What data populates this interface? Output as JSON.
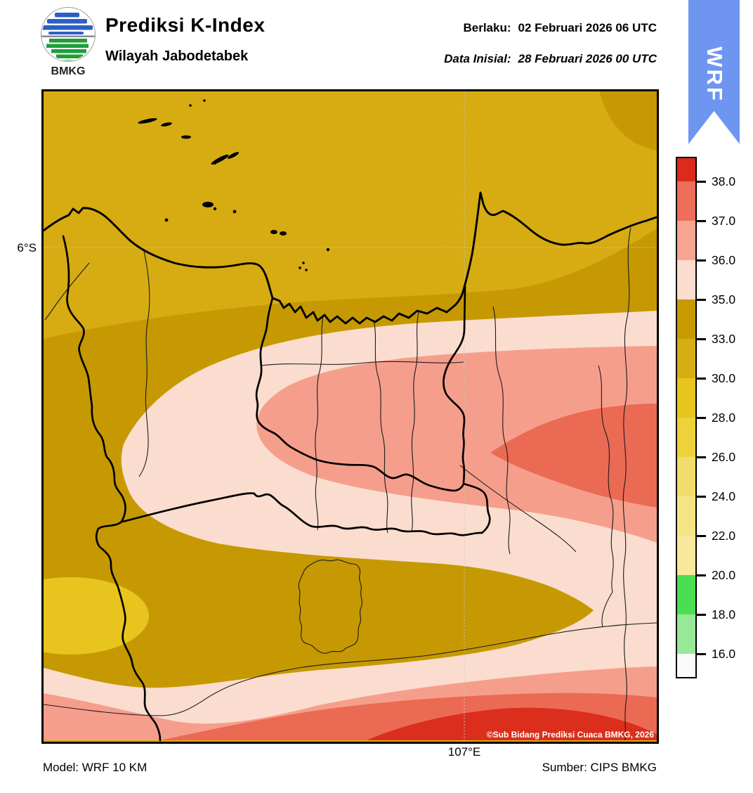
{
  "header": {
    "logo_text": "BMKG",
    "title": "Prediksi K-Index",
    "subtitle": "Wilayah Jabodetabek",
    "berlaku_label": "Berlaku:",
    "berlaku_value": "02 Februari 2026 06 UTC",
    "inisial_label": "Data Inisial:",
    "inisial_value": "28 Februari 2026 00 UTC",
    "ribbon_label": "WRF"
  },
  "map": {
    "lat_tick": "6°S",
    "lon_tick": "107°E",
    "watermark": "©Sub Bidang Prediksi Cuaca BMKG, 2026"
  },
  "footer": {
    "model": "Model: WRF 10 KM",
    "source": "Sumber: CIPS BMKG"
  },
  "colorbar": {
    "tick_labels": [
      "38.0",
      "37.0",
      "36.0",
      "35.0",
      "33.0",
      "30.0",
      "28.0",
      "26.0",
      "24.0",
      "22.0",
      "20.0",
      "18.0",
      "16.0"
    ],
    "segment_colors": [
      "#DB2B1A",
      "#ED6E59",
      "#F8A492",
      "#FBDDCE",
      "#C79A02",
      "#D6AD15",
      "#E8C51E",
      "#EDD23C",
      "#F2DC6B",
      "#F5E483",
      "#F8E89B",
      "#4ADE53",
      "#97E897",
      "#FBFBF9"
    ],
    "levels": [
      16,
      18,
      20,
      22,
      24,
      26,
      28,
      30,
      33,
      35,
      36,
      37,
      38
    ],
    "cap_height": 33,
    "step_height": 56
  },
  "colors": {
    "gold": "#D6AC12",
    "olive": "#C69902",
    "gold_light": "#E8C51E",
    "pink": "#FBDDCF",
    "salmon": "#F69E8C",
    "deep_salmon": "#EB6A53",
    "red": "#DC2E1D",
    "ribbon": "#6E96F0",
    "grid": "#C6C6B8"
  }
}
